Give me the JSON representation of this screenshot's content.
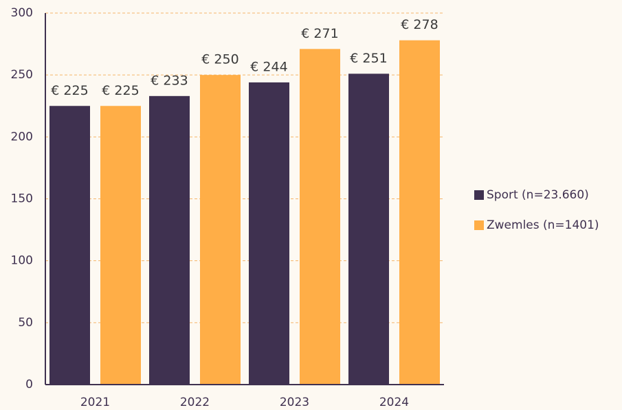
{
  "chart_data": {
    "type": "bar",
    "categories": [
      "2021",
      "2022",
      "2023",
      "2024"
    ],
    "series": [
      {
        "name": "Sport (n=23.660)",
        "color": "#3f3150",
        "values": [
          225,
          233,
          244,
          251
        ],
        "value_labels": [
          "€ 225",
          "€ 233",
          "€ 244",
          "€ 251"
        ]
      },
      {
        "name": "Zwemles (n=1401)",
        "color": "#ffae47",
        "values": [
          225,
          250,
          271,
          278
        ],
        "value_labels": [
          "€ 225",
          "€ 250",
          "€ 271",
          "€ 278"
        ]
      }
    ],
    "ylim": [
      0,
      300
    ],
    "yticks": [
      0,
      50,
      100,
      150,
      200,
      250,
      300
    ],
    "grid": true,
    "legend": "right"
  }
}
